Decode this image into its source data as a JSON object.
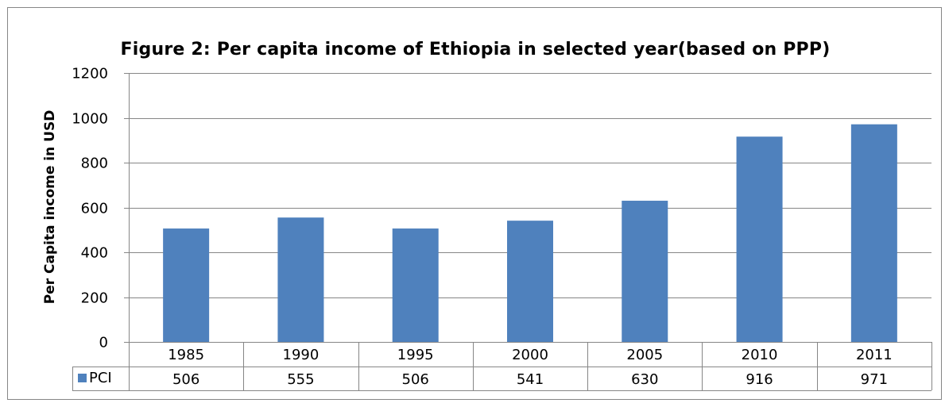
{
  "chart_data": {
    "type": "bar",
    "title": "Figure 2: Per capita income of Ethiopia in selected year(based on PPP)",
    "ylabel": "Per Capita income in USD",
    "xlabel": "",
    "categories": [
      "1985",
      "1990",
      "1995",
      "2000",
      "2005",
      "2010",
      "2011"
    ],
    "series": [
      {
        "name": "PCI",
        "values": [
          506,
          555,
          506,
          541,
          630,
          916,
          971
        ],
        "color": "#4f81bd"
      }
    ],
    "ylim": [
      0,
      1200
    ],
    "yticks": [
      "0",
      "200",
      "400",
      "600",
      "800",
      "1000",
      "1200"
    ],
    "grid": true,
    "legend": "data-table"
  }
}
